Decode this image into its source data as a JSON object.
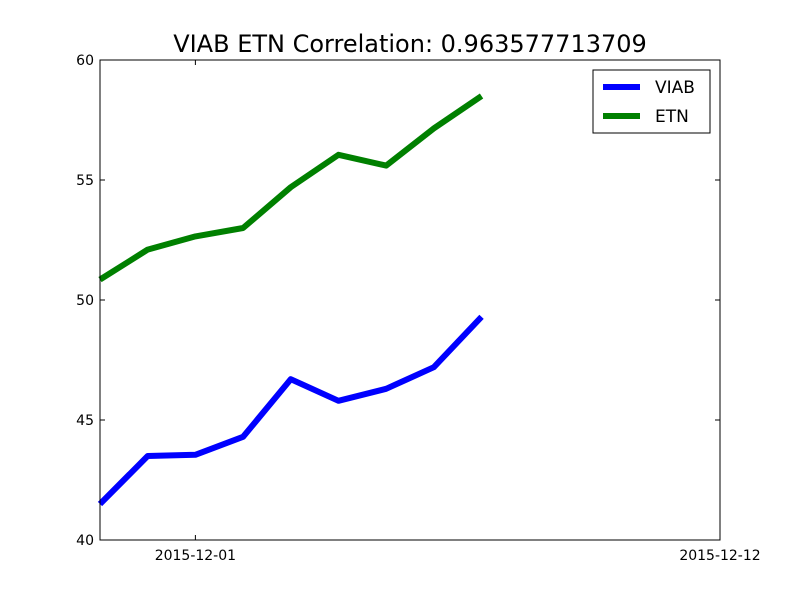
{
  "chart_data": {
    "type": "line",
    "title": "VIAB ETN Correlation: 0.963577713709",
    "xlabel": "",
    "ylabel": "",
    "x": [
      "2015-11-29",
      "2015-11-30",
      "2015-12-01",
      "2015-12-02",
      "2015-12-03",
      "2015-12-04",
      "2015-12-05",
      "2015-12-06",
      "2015-12-07"
    ],
    "xlim": [
      "2015-11-29",
      "2015-12-12"
    ],
    "xticks": [
      "2015-12-01",
      "2015-12-12"
    ],
    "ylim": [
      40,
      60
    ],
    "yticks": [
      40,
      45,
      50,
      55,
      60
    ],
    "grid": false,
    "legend_position": "top-right",
    "series": [
      {
        "name": "VIAB",
        "color": "#0000ff",
        "values": [
          41.5,
          43.5,
          43.55,
          44.3,
          46.7,
          45.8,
          46.3,
          47.2,
          49.3
        ]
      },
      {
        "name": "ETN",
        "color": "#008000",
        "values": [
          50.85,
          52.1,
          52.65,
          53.0,
          54.7,
          56.05,
          55.6,
          57.15,
          58.5
        ]
      }
    ]
  }
}
